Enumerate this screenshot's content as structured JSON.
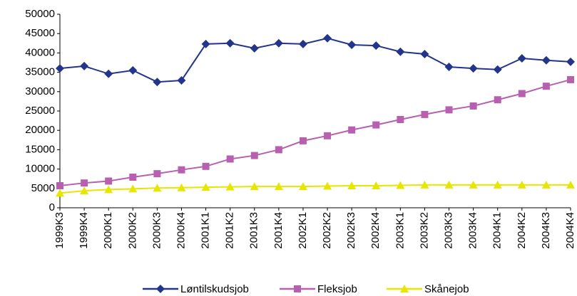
{
  "chart_data": {
    "type": "line",
    "categories": [
      "1999K3",
      "1999K4",
      "2000K1",
      "2000K2",
      "2000K3",
      "2000K4",
      "2001K1",
      "2001K2",
      "2001K3",
      "2001K4",
      "2002K1",
      "2002K2",
      "2002K3",
      "2002K4",
      "2003K1",
      "2003K2",
      "2003K3",
      "2003K4",
      "2004K1",
      "2004K2",
      "2004K3",
      "2004K4"
    ],
    "series": [
      {
        "name": "Løntilskudsjob",
        "color": "#23358a",
        "marker": "diamond",
        "values": [
          36000,
          36600,
          34600,
          35500,
          32500,
          32900,
          42300,
          42500,
          41200,
          42500,
          42300,
          43800,
          42100,
          41900,
          40300,
          39700,
          36400,
          36000,
          35700,
          38600,
          38100,
          37700
        ]
      },
      {
        "name": "Fleksjob",
        "color": "#b860b0",
        "marker": "square",
        "values": [
          5700,
          6400,
          6900,
          7900,
          8800,
          9800,
          10700,
          12600,
          13500,
          15000,
          17300,
          18600,
          20100,
          21400,
          22800,
          24100,
          25300,
          26300,
          27900,
          29500,
          31400,
          33100
        ]
      },
      {
        "name": "Skånejob",
        "color": "#e6e600",
        "marker": "triangle",
        "values": [
          3800,
          4400,
          4700,
          4900,
          5100,
          5200,
          5300,
          5400,
          5500,
          5500,
          5500,
          5600,
          5700,
          5700,
          5800,
          5900,
          5900,
          5900,
          5900,
          5900,
          5900,
          5900
        ]
      }
    ],
    "ylim": [
      0,
      50000
    ],
    "yticks": [
      0,
      5000,
      10000,
      15000,
      20000,
      25000,
      30000,
      35000,
      40000,
      45000,
      50000
    ],
    "grid": false,
    "legend": "bottom"
  }
}
